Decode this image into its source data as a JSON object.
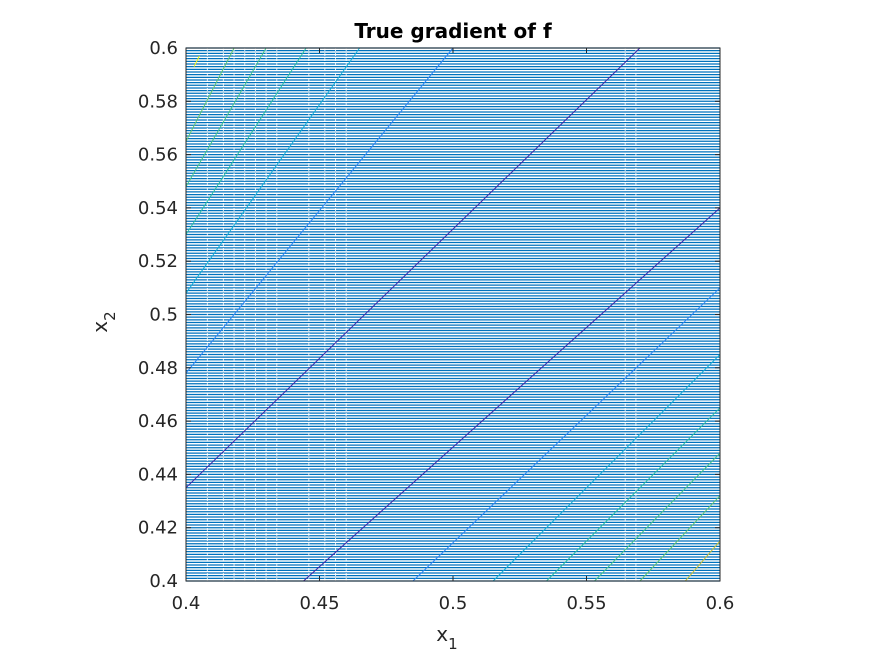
{
  "chart_data": {
    "type": "quiver",
    "title": "True gradient of f",
    "xlabel": {
      "base": "x",
      "sub": "1"
    },
    "ylabel": {
      "base": "x",
      "sub": "2"
    },
    "xlim": [
      0.4,
      0.6
    ],
    "ylim": [
      0.4,
      0.6
    ],
    "xticks": [
      "0.4",
      "0.45",
      "0.5",
      "0.55",
      "0.6"
    ],
    "yticks": [
      "0.4",
      "0.42",
      "0.44",
      "0.46",
      "0.48",
      "0.5",
      "0.52",
      "0.54",
      "0.56",
      "0.58",
      "0.6"
    ],
    "grid": false,
    "field": {
      "arrow_color": "#0072BD",
      "row_spacing": 0.001,
      "description_direction": "horizontal"
    },
    "contours": {
      "colormap": "parula",
      "lines": [
        {
          "color": "#3E26A8",
          "points": [
            [
              0.444,
              0.4
            ],
            [
              0.6,
              0.54
            ]
          ]
        },
        {
          "color": "#3E26A8",
          "points": [
            [
              0.4,
              0.435
            ],
            [
              0.57,
              0.6
            ]
          ]
        },
        {
          "color": "#2E87F7",
          "points": [
            [
              0.485,
              0.4
            ],
            [
              0.6,
              0.51
            ]
          ]
        },
        {
          "color": "#2E87F7",
          "points": [
            [
              0.4,
              0.478
            ],
            [
              0.5,
              0.6
            ]
          ]
        },
        {
          "color": "#16AFD7",
          "points": [
            [
              0.515,
              0.4
            ],
            [
              0.6,
              0.485
            ]
          ]
        },
        {
          "color": "#16AFD7",
          "points": [
            [
              0.4,
              0.508
            ],
            [
              0.465,
              0.6
            ]
          ]
        },
        {
          "color": "#2BBFA2",
          "points": [
            [
              0.535,
              0.4
            ],
            [
              0.6,
              0.465
            ]
          ]
        },
        {
          "color": "#2BBFA2",
          "points": [
            [
              0.4,
              0.53
            ],
            [
              0.445,
              0.6
            ]
          ]
        },
        {
          "color": "#47C58B",
          "points": [
            [
              0.553,
              0.4
            ],
            [
              0.6,
              0.448
            ]
          ]
        },
        {
          "color": "#47C58B",
          "points": [
            [
              0.4,
              0.548
            ],
            [
              0.43,
              0.6
            ]
          ]
        },
        {
          "color": "#62C773",
          "points": [
            [
              0.57,
              0.4
            ],
            [
              0.6,
              0.432
            ]
          ]
        },
        {
          "color": "#62C773",
          "points": [
            [
              0.4,
              0.565
            ],
            [
              0.418,
              0.6
            ]
          ]
        },
        {
          "color": "#C5C03C",
          "points": [
            [
              0.587,
              0.4
            ],
            [
              0.6,
              0.415
            ]
          ]
        },
        {
          "color": "#F9FB0E",
          "points": [
            [
              0.403,
              0.593
            ],
            [
              0.405,
              0.597
            ]
          ]
        }
      ]
    },
    "gaps": {
      "color": "#ffffff",
      "x_positions": [
        0.408,
        0.414,
        0.418,
        0.422,
        0.426,
        0.43,
        0.434,
        0.446,
        0.452,
        0.456,
        0.46,
        0.5645,
        0.5685
      ]
    }
  }
}
